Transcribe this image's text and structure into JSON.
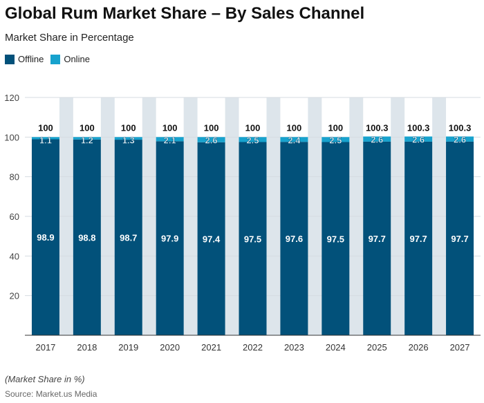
{
  "chart_data": {
    "type": "bar",
    "stacked": true,
    "title": "Global Rum Market Share – By Sales Channel",
    "subtitle": "Market Share in Percentage",
    "categories": [
      "2017",
      "2018",
      "2019",
      "2020",
      "2021",
      "2022",
      "2023",
      "2024",
      "2025",
      "2026",
      "2027"
    ],
    "series": [
      {
        "name": "Offline",
        "color": "#02517a",
        "values": [
          98.9,
          98.8,
          98.7,
          97.9,
          97.4,
          97.5,
          97.6,
          97.5,
          97.7,
          97.7,
          97.7
        ]
      },
      {
        "name": "Online",
        "color": "#17a2cd",
        "values": [
          1.1,
          1.2,
          1.3,
          2.1,
          2.6,
          2.5,
          2.4,
          2.5,
          2.6,
          2.6,
          2.6
        ]
      }
    ],
    "totals": [
      "100",
      "100",
      "100",
      "100",
      "100",
      "100",
      "100",
      "100",
      "100.3",
      "100.3",
      "100.3"
    ],
    "ylim": [
      0,
      120
    ],
    "yticks": [
      20,
      40,
      60,
      80,
      100,
      120
    ],
    "grid": true,
    "legend": "top-left",
    "note": "(Market Share in %)",
    "source": "Source: Market.us Media"
  }
}
